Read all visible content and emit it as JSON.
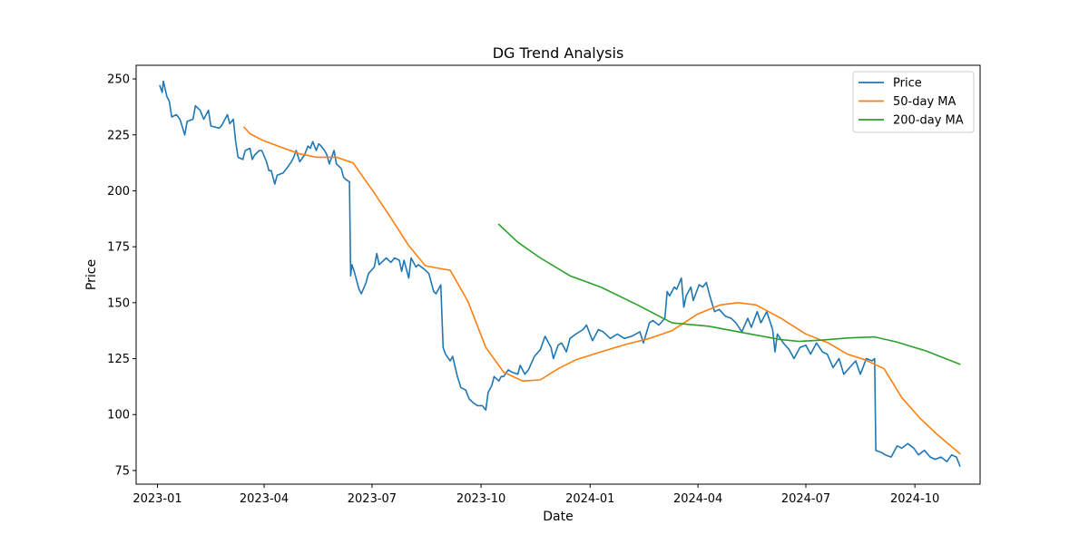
{
  "chart_data": {
    "type": "line",
    "title": "DG Trend Analysis",
    "xlabel": "Date",
    "ylabel": "Price",
    "xlim": [
      "2022-12-14",
      "2024-11-25"
    ],
    "ylim": [
      68.9,
      256.1
    ],
    "x_ticks": [
      "2023-01-01",
      "2023-04-01",
      "2023-07-01",
      "2023-10-01",
      "2024-01-01",
      "2024-04-01",
      "2024-07-01",
      "2024-10-01"
    ],
    "x_tick_labels": [
      "2023-01",
      "2023-04",
      "2023-07",
      "2023-10",
      "2024-01",
      "2024-04",
      "2024-07",
      "2024-10"
    ],
    "y_ticks": [
      75,
      100,
      125,
      150,
      175,
      200,
      225,
      250
    ],
    "y_tick_labels": [
      "75",
      "100",
      "125",
      "150",
      "175",
      "200",
      "225",
      "250"
    ],
    "grid": false,
    "legend_position": "top-right",
    "series": [
      {
        "name": "Price",
        "color": "#1f77b4",
        "points": [
          [
            "2023-01-03",
            247
          ],
          [
            "2023-01-05",
            244
          ],
          [
            "2023-01-06",
            249
          ],
          [
            "2023-01-09",
            242
          ],
          [
            "2023-01-11",
            240
          ],
          [
            "2023-01-13",
            233
          ],
          [
            "2023-01-17",
            234
          ],
          [
            "2023-01-20",
            232
          ],
          [
            "2023-01-24",
            225
          ],
          [
            "2023-01-26",
            231
          ],
          [
            "2023-01-31",
            232
          ],
          [
            "2023-02-02",
            238
          ],
          [
            "2023-02-06",
            236
          ],
          [
            "2023-02-09",
            232
          ],
          [
            "2023-02-13",
            236
          ],
          [
            "2023-02-15",
            229
          ],
          [
            "2023-02-22",
            228
          ],
          [
            "2023-02-24",
            229
          ],
          [
            "2023-03-01",
            234
          ],
          [
            "2023-03-03",
            230
          ],
          [
            "2023-03-06",
            232
          ],
          [
            "2023-03-08",
            222
          ],
          [
            "2023-03-10",
            215
          ],
          [
            "2023-03-14",
            214
          ],
          [
            "2023-03-16",
            218
          ],
          [
            "2023-03-20",
            219
          ],
          [
            "2023-03-22",
            214
          ],
          [
            "2023-03-24",
            216
          ],
          [
            "2023-03-28",
            218
          ],
          [
            "2023-03-30",
            218
          ],
          [
            "2023-04-03",
            213
          ],
          [
            "2023-04-05",
            209
          ],
          [
            "2023-04-07",
            209
          ],
          [
            "2023-04-10",
            203
          ],
          [
            "2023-04-12",
            207
          ],
          [
            "2023-04-17",
            208
          ],
          [
            "2023-04-20",
            210
          ],
          [
            "2023-04-24",
            213
          ],
          [
            "2023-04-26",
            215
          ],
          [
            "2023-04-28",
            218
          ],
          [
            "2023-05-01",
            213
          ],
          [
            "2023-05-05",
            216
          ],
          [
            "2023-05-08",
            220
          ],
          [
            "2023-05-10",
            219
          ],
          [
            "2023-05-12",
            222
          ],
          [
            "2023-05-15",
            218
          ],
          [
            "2023-05-17",
            221
          ],
          [
            "2023-05-19",
            220
          ],
          [
            "2023-05-22",
            218
          ],
          [
            "2023-05-24",
            216
          ],
          [
            "2023-05-26",
            212
          ],
          [
            "2023-05-30",
            218
          ],
          [
            "2023-06-01",
            212
          ],
          [
            "2023-06-05",
            210
          ],
          [
            "2023-06-07",
            206
          ],
          [
            "2023-06-09",
            205
          ],
          [
            "2023-06-12",
            204
          ],
          [
            "2023-06-13",
            162
          ],
          [
            "2023-06-14",
            167
          ],
          [
            "2023-06-16",
            164
          ],
          [
            "2023-06-20",
            156
          ],
          [
            "2023-06-22",
            154
          ],
          [
            "2023-06-26",
            159
          ],
          [
            "2023-06-28",
            163
          ],
          [
            "2023-07-03",
            166
          ],
          [
            "2023-07-05",
            172
          ],
          [
            "2023-07-07",
            167
          ],
          [
            "2023-07-11",
            169
          ],
          [
            "2023-07-13",
            170
          ],
          [
            "2023-07-17",
            168
          ],
          [
            "2023-07-20",
            170
          ],
          [
            "2023-07-24",
            169
          ],
          [
            "2023-07-26",
            164
          ],
          [
            "2023-07-28",
            169
          ],
          [
            "2023-08-01",
            161
          ],
          [
            "2023-08-03",
            170
          ],
          [
            "2023-08-07",
            166
          ],
          [
            "2023-08-09",
            167
          ],
          [
            "2023-08-14",
            165
          ],
          [
            "2023-08-18",
            163
          ],
          [
            "2023-08-22",
            155
          ],
          [
            "2023-08-24",
            154
          ],
          [
            "2023-08-28",
            158
          ],
          [
            "2023-08-30",
            130
          ],
          [
            "2023-09-01",
            127
          ],
          [
            "2023-09-05",
            124
          ],
          [
            "2023-09-07",
            126
          ],
          [
            "2023-09-11",
            117
          ],
          [
            "2023-09-14",
            112
          ],
          [
            "2023-09-18",
            111
          ],
          [
            "2023-09-21",
            107
          ],
          [
            "2023-09-25",
            105
          ],
          [
            "2023-09-28",
            104
          ],
          [
            "2023-10-02",
            104
          ],
          [
            "2023-10-05",
            102
          ],
          [
            "2023-10-07",
            110
          ],
          [
            "2023-10-10",
            113
          ],
          [
            "2023-10-12",
            117
          ],
          [
            "2023-10-16",
            115
          ],
          [
            "2023-10-18",
            117
          ],
          [
            "2023-10-20",
            117
          ],
          [
            "2023-10-24",
            120
          ],
          [
            "2023-10-27",
            119
          ],
          [
            "2023-11-01",
            118
          ],
          [
            "2023-11-03",
            122
          ],
          [
            "2023-11-07",
            118
          ],
          [
            "2023-11-10",
            120
          ],
          [
            "2023-11-15",
            126
          ],
          [
            "2023-11-20",
            129
          ],
          [
            "2023-11-24",
            135
          ],
          [
            "2023-11-29",
            130
          ],
          [
            "2023-12-01",
            125
          ],
          [
            "2023-12-05",
            131
          ],
          [
            "2023-12-08",
            132
          ],
          [
            "2023-12-12",
            128
          ],
          [
            "2023-12-15",
            134
          ],
          [
            "2023-12-20",
            136
          ],
          [
            "2023-12-26",
            138
          ],
          [
            "2023-12-29",
            140
          ],
          [
            "2024-01-03",
            133
          ],
          [
            "2024-01-08",
            138
          ],
          [
            "2024-01-12",
            137
          ],
          [
            "2024-01-18",
            134
          ],
          [
            "2024-01-24",
            136
          ],
          [
            "2024-01-30",
            134
          ],
          [
            "2024-02-05",
            135
          ],
          [
            "2024-02-12",
            137
          ],
          [
            "2024-02-15",
            132
          ],
          [
            "2024-02-20",
            141
          ],
          [
            "2024-02-23",
            142
          ],
          [
            "2024-02-28",
            140
          ],
          [
            "2024-03-04",
            143
          ],
          [
            "2024-03-06",
            155
          ],
          [
            "2024-03-08",
            153
          ],
          [
            "2024-03-12",
            157
          ],
          [
            "2024-03-14",
            156
          ],
          [
            "2024-03-18",
            161
          ],
          [
            "2024-03-20",
            148
          ],
          [
            "2024-03-22",
            153
          ],
          [
            "2024-03-26",
            157
          ],
          [
            "2024-03-28",
            151
          ],
          [
            "2024-04-02",
            158
          ],
          [
            "2024-04-05",
            157
          ],
          [
            "2024-04-08",
            159
          ],
          [
            "2024-04-11",
            153
          ],
          [
            "2024-04-15",
            146
          ],
          [
            "2024-04-19",
            147
          ],
          [
            "2024-04-24",
            144
          ],
          [
            "2024-04-29",
            143
          ],
          [
            "2024-05-03",
            141
          ],
          [
            "2024-05-08",
            137
          ],
          [
            "2024-05-13",
            143
          ],
          [
            "2024-05-16",
            139
          ],
          [
            "2024-05-21",
            146
          ],
          [
            "2024-05-24",
            141
          ],
          [
            "2024-05-29",
            146
          ],
          [
            "2024-06-03",
            138
          ],
          [
            "2024-06-05",
            128
          ],
          [
            "2024-06-07",
            136
          ],
          [
            "2024-06-12",
            132
          ],
          [
            "2024-06-17",
            129
          ],
          [
            "2024-06-21",
            125
          ],
          [
            "2024-06-26",
            130
          ],
          [
            "2024-07-01",
            131
          ],
          [
            "2024-07-05",
            127
          ],
          [
            "2024-07-10",
            132
          ],
          [
            "2024-07-15",
            128
          ],
          [
            "2024-07-19",
            127
          ],
          [
            "2024-07-24",
            121
          ],
          [
            "2024-07-29",
            125
          ],
          [
            "2024-08-02",
            118
          ],
          [
            "2024-08-07",
            121
          ],
          [
            "2024-08-12",
            124
          ],
          [
            "2024-08-16",
            118
          ],
          [
            "2024-08-21",
            125
          ],
          [
            "2024-08-26",
            124
          ],
          [
            "2024-08-28",
            125
          ],
          [
            "2024-08-29",
            84
          ],
          [
            "2024-09-03",
            83
          ],
          [
            "2024-09-06",
            82
          ],
          [
            "2024-09-11",
            81
          ],
          [
            "2024-09-16",
            86
          ],
          [
            "2024-09-20",
            85
          ],
          [
            "2024-09-25",
            87
          ],
          [
            "2024-09-30",
            85
          ],
          [
            "2024-10-04",
            82
          ],
          [
            "2024-10-09",
            84
          ],
          [
            "2024-10-14",
            81
          ],
          [
            "2024-10-18",
            80
          ],
          [
            "2024-10-23",
            81
          ],
          [
            "2024-10-28",
            79
          ],
          [
            "2024-11-01",
            82
          ],
          [
            "2024-11-05",
            81
          ],
          [
            "2024-11-08",
            77
          ]
        ]
      },
      {
        "name": "50-day MA",
        "color": "#ff7f0e",
        "points": [
          [
            "2023-03-15",
            228.5
          ],
          [
            "2023-03-20",
            225.5
          ],
          [
            "2023-03-31",
            222.5
          ],
          [
            "2023-04-15",
            219.5
          ],
          [
            "2023-05-01",
            216.5
          ],
          [
            "2023-05-15",
            215.0
          ],
          [
            "2023-06-01",
            215.0
          ],
          [
            "2023-06-15",
            212.5
          ],
          [
            "2023-07-01",
            200.5
          ],
          [
            "2023-07-15",
            189.5
          ],
          [
            "2023-08-01",
            175.5
          ],
          [
            "2023-08-15",
            166.5
          ],
          [
            "2023-08-25",
            165.5
          ],
          [
            "2023-09-05",
            164.5
          ],
          [
            "2023-09-20",
            150.5
          ],
          [
            "2023-10-05",
            130.0
          ],
          [
            "2023-10-20",
            119.0
          ],
          [
            "2023-11-05",
            115.0
          ],
          [
            "2023-11-20",
            115.5
          ],
          [
            "2023-12-05",
            120.5
          ],
          [
            "2023-12-20",
            124.5
          ],
          [
            "2024-01-10",
            128.0
          ],
          [
            "2024-02-01",
            131.5
          ],
          [
            "2024-02-20",
            134.0
          ],
          [
            "2024-03-10",
            137.5
          ],
          [
            "2024-04-01",
            145.0
          ],
          [
            "2024-04-20",
            149.0
          ],
          [
            "2024-05-05",
            150.0
          ],
          [
            "2024-05-20",
            149.0
          ],
          [
            "2024-06-10",
            143.0
          ],
          [
            "2024-07-01",
            136.0
          ],
          [
            "2024-07-20",
            132.0
          ],
          [
            "2024-08-05",
            127.0
          ],
          [
            "2024-08-20",
            124.5
          ],
          [
            "2024-09-05",
            120.5
          ],
          [
            "2024-09-20",
            107.5
          ],
          [
            "2024-10-05",
            98.5
          ],
          [
            "2024-10-20",
            91.0
          ],
          [
            "2024-11-08",
            82.5
          ]
        ]
      },
      {
        "name": "200-day MA",
        "color": "#2ca02c",
        "points": [
          [
            "2023-10-16",
            185
          ],
          [
            "2023-11-01",
            177
          ],
          [
            "2023-11-20",
            170
          ],
          [
            "2023-12-15",
            162
          ],
          [
            "2024-01-10",
            157
          ],
          [
            "2024-02-10",
            149
          ],
          [
            "2024-03-10",
            141
          ],
          [
            "2024-04-10",
            139.5
          ],
          [
            "2024-05-10",
            136.5
          ],
          [
            "2024-06-10",
            133.5
          ],
          [
            "2024-06-25",
            132.7
          ],
          [
            "2024-07-15",
            133.3
          ],
          [
            "2024-08-05",
            134.2
          ],
          [
            "2024-08-28",
            134.7
          ],
          [
            "2024-09-15",
            132.5
          ],
          [
            "2024-10-10",
            128.5
          ],
          [
            "2024-11-08",
            122.5
          ]
        ]
      }
    ]
  }
}
